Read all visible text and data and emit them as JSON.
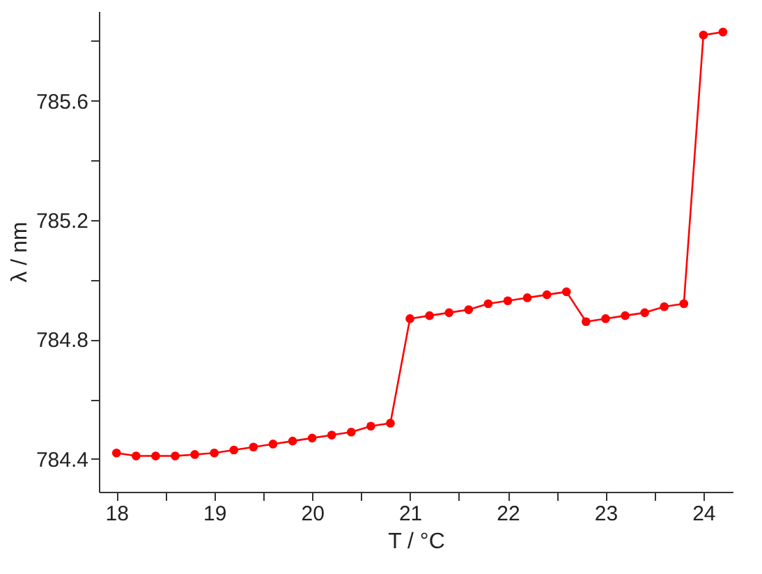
{
  "chart_data": {
    "type": "line",
    "xlabel": "T / °C",
    "ylabel": "λ / nm",
    "x": [
      18,
      18.2,
      18.4,
      18.6,
      18.8,
      19,
      19.2,
      19.4,
      19.6,
      19.8,
      20,
      20.2,
      20.4,
      20.6,
      20.8,
      21,
      21.2,
      21.4,
      21.6,
      21.8,
      22,
      22.2,
      22.4,
      22.6,
      22.8,
      23,
      23.2,
      23.4,
      23.6,
      23.8,
      24,
      24.2
    ],
    "series": [
      {
        "color": "#ff0000",
        "values": [
          784.42,
          784.41,
          784.41,
          784.41,
          784.415,
          784.42,
          784.43,
          784.44,
          784.45,
          784.46,
          784.47,
          784.48,
          784.49,
          784.51,
          784.52,
          784.87,
          784.88,
          784.89,
          784.9,
          784.92,
          784.93,
          784.94,
          784.95,
          784.96,
          784.86,
          784.87,
          784.88,
          784.89,
          784.91,
          784.92,
          785.82,
          785.83
        ]
      }
    ],
    "xlim": [
      17.82,
      24.3
    ],
    "ylim": [
      784.29,
      785.9
    ],
    "xticks": [
      18,
      {
        "value": 18.5,
        "label": null
      },
      19,
      {
        "value": 19.5,
        "label": null
      },
      20,
      {
        "value": 20.5,
        "label": null
      },
      21,
      {
        "value": 21.5,
        "label": null
      },
      22,
      {
        "value": 22.5,
        "label": null
      },
      23,
      {
        "value": 23.5,
        "label": null
      },
      24
    ],
    "yticks": [
      784.4,
      {
        "value": 784.6,
        "label": null
      },
      784.8,
      {
        "value": 785.0,
        "label": null
      },
      785.2,
      {
        "value": 785.4,
        "label": null
      },
      785.6,
      {
        "value": 785.8,
        "label": null
      }
    ],
    "marker": "circle",
    "line_style": "solid",
    "grid": false
  }
}
